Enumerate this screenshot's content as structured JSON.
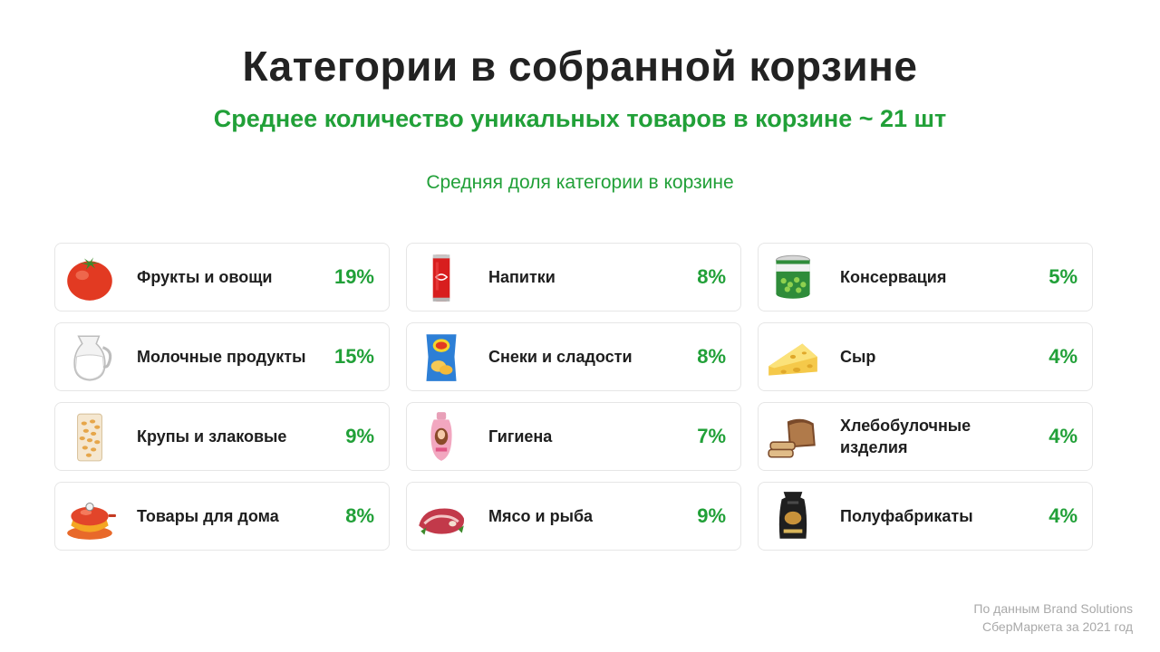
{
  "title": "Категории в собранной корзине",
  "subtitle": "Среднее количество уникальных товаров в корзине ~ 21 шт",
  "section_label": "Средняя доля категории в корзине",
  "categories": [
    {
      "label": "Фрукты и овощи",
      "percent": "19%",
      "icon": "tomato-icon"
    },
    {
      "label": "Молочные продукты",
      "percent": "15%",
      "icon": "milk-jug-icon"
    },
    {
      "label": "Крупы и злаковые",
      "percent": "9%",
      "icon": "pasta-pack-icon"
    },
    {
      "label": "Товары для дома",
      "percent": "8%",
      "icon": "cookware-icon"
    },
    {
      "label": "Напитки",
      "percent": "8%",
      "icon": "soda-can-icon"
    },
    {
      "label": "Снеки и сладости",
      "percent": "8%",
      "icon": "chips-bag-icon"
    },
    {
      "label": "Гигиена",
      "percent": "7%",
      "icon": "shampoo-bottle-icon"
    },
    {
      "label": "Мясо и рыба",
      "percent": "9%",
      "icon": "meat-icon"
    },
    {
      "label": "Консервация",
      "percent": "5%",
      "icon": "canned-peas-icon"
    },
    {
      "label": "Сыр",
      "percent": "4%",
      "icon": "cheese-icon"
    },
    {
      "label": "Хлебобулочные изделия",
      "percent": "4%",
      "icon": "bread-icon"
    },
    {
      "label": "Полуфабрикаты",
      "percent": "4%",
      "icon": "frozen-pack-icon"
    }
  ],
  "source": {
    "line1": "По данным Brand Solutions",
    "line2": "СберМаркета за 2021 год"
  },
  "colors": {
    "accent": "#21a038",
    "title": "#222222",
    "text": "#1e1e1e",
    "muted": "#a9a9a9",
    "card_border": "#e6e6e6"
  }
}
